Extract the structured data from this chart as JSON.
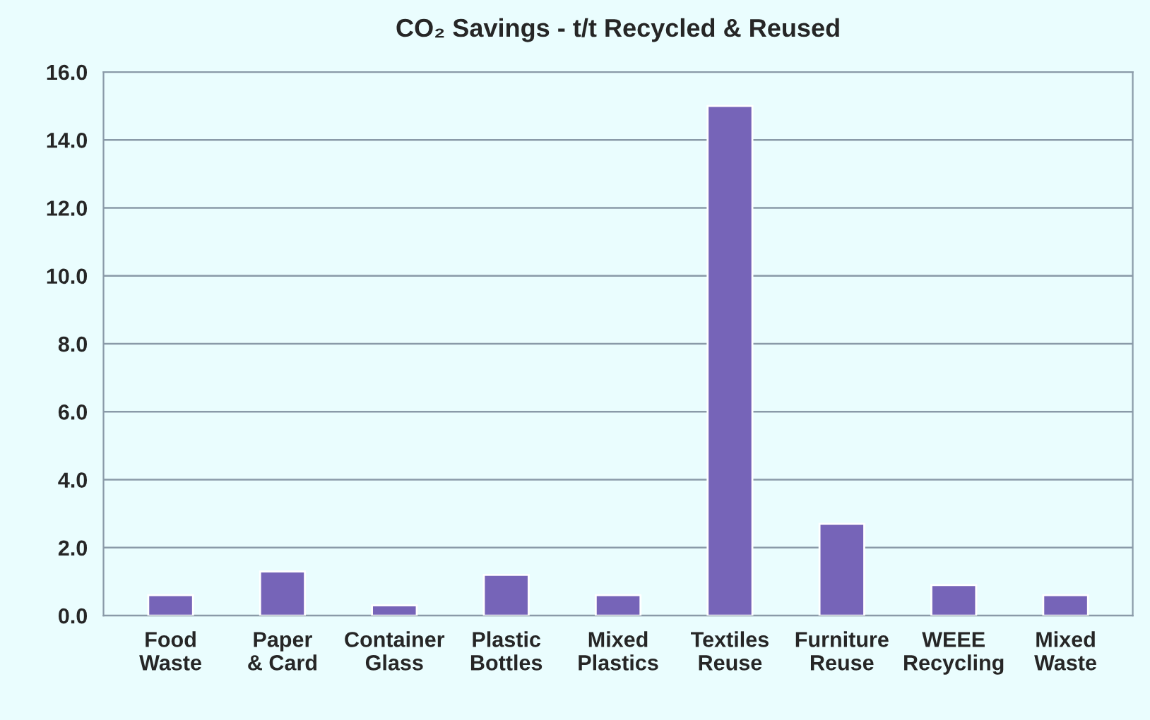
{
  "chart_data": {
    "type": "bar",
    "title": "CO₂ Savings - t/t Recycled & Reused",
    "categories": [
      "Food\nWaste",
      "Paper\n& Card",
      "Container\nGlass",
      "Plastic\nBottles",
      "Mixed\nPlastics",
      "Textiles\nReuse",
      "Furniture\nReuse",
      "WEEE\nRecycling",
      "Mixed\nWaste"
    ],
    "values": [
      0.6,
      1.3,
      0.3,
      1.2,
      0.6,
      15.0,
      2.7,
      0.9,
      0.6
    ],
    "color": "#7664b8",
    "ylim": [
      0,
      16
    ],
    "yticks": [
      {
        "value": 0,
        "label": "0.0"
      },
      {
        "value": 2,
        "label": "2.0"
      },
      {
        "value": 4,
        "label": "4.0"
      },
      {
        "value": 6,
        "label": "6.0"
      },
      {
        "value": 8,
        "label": "8.0"
      },
      {
        "value": 10,
        "label": "10.0"
      },
      {
        "value": 12,
        "label": "12.0"
      },
      {
        "value": 14,
        "label": "14.0"
      },
      {
        "value": 16,
        "label": "16.0"
      }
    ],
    "grid": "y"
  }
}
